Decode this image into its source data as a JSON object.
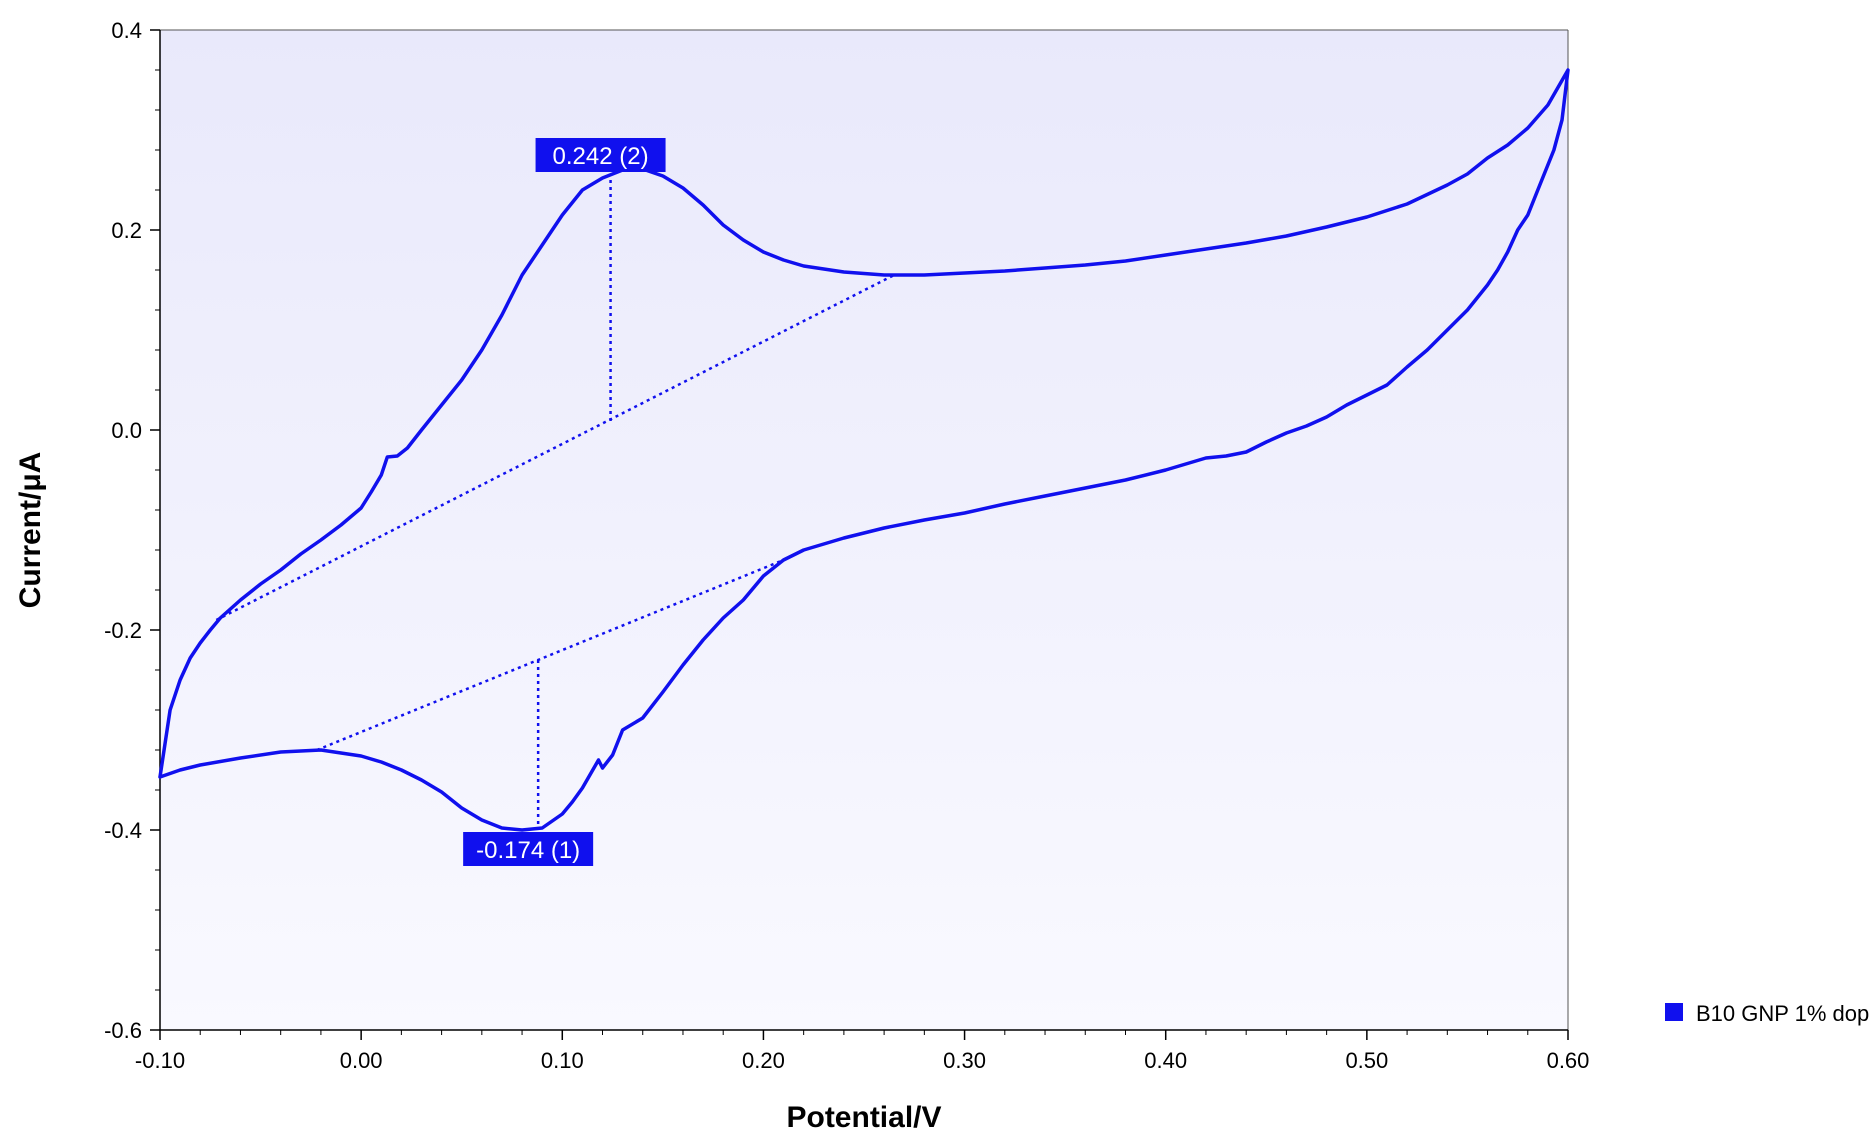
{
  "chart_data": {
    "type": "line",
    "title": "",
    "xlabel": "Potential/V",
    "ylabel": "Current/μA",
    "xlim": [
      -0.1,
      0.6
    ],
    "ylim": [
      -0.6,
      0.4
    ],
    "xticks": [
      -0.1,
      0.0,
      0.1,
      0.2,
      0.3,
      0.4,
      0.5,
      0.6
    ],
    "xtick_labels": [
      "-0.10",
      "0.00",
      "0.10",
      "0.20",
      "0.30",
      "0.40",
      "0.50",
      "0.60"
    ],
    "yticks": [
      -0.6,
      -0.4,
      -0.2,
      0.0,
      0.2,
      0.4
    ],
    "ytick_labels": [
      "-0.6",
      "-0.4",
      "-0.2",
      "0.0",
      "0.2",
      "0.4"
    ],
    "grid": false,
    "legend_position": "bottom-right outside",
    "series": [
      {
        "name": "B10 GNP 1% dop",
        "color": "#1010ee",
        "points": [
          [
            -0.1,
            -0.347
          ],
          [
            -0.095,
            -0.28
          ],
          [
            -0.09,
            -0.25
          ],
          [
            -0.085,
            -0.228
          ],
          [
            -0.08,
            -0.213
          ],
          [
            -0.075,
            -0.2
          ],
          [
            -0.07,
            -0.188
          ],
          [
            -0.06,
            -0.17
          ],
          [
            -0.05,
            -0.154
          ],
          [
            -0.04,
            -0.14
          ],
          [
            -0.03,
            -0.124
          ],
          [
            -0.02,
            -0.11
          ],
          [
            -0.01,
            -0.095
          ],
          [
            0.0,
            -0.078
          ],
          [
            0.005,
            -0.062
          ],
          [
            0.01,
            -0.045
          ],
          [
            0.013,
            -0.027
          ],
          [
            0.018,
            -0.026
          ],
          [
            0.023,
            -0.018
          ],
          [
            0.03,
            -0.0
          ],
          [
            0.04,
            0.025
          ],
          [
            0.05,
            0.05
          ],
          [
            0.06,
            0.08
          ],
          [
            0.07,
            0.115
          ],
          [
            0.08,
            0.155
          ],
          [
            0.09,
            0.185
          ],
          [
            0.1,
            0.215
          ],
          [
            0.11,
            0.24
          ],
          [
            0.12,
            0.252
          ],
          [
            0.13,
            0.26
          ],
          [
            0.14,
            0.261
          ],
          [
            0.15,
            0.254
          ],
          [
            0.16,
            0.242
          ],
          [
            0.17,
            0.225
          ],
          [
            0.18,
            0.205
          ],
          [
            0.19,
            0.19
          ],
          [
            0.2,
            0.178
          ],
          [
            0.21,
            0.17
          ],
          [
            0.22,
            0.164
          ],
          [
            0.24,
            0.158
          ],
          [
            0.26,
            0.155
          ],
          [
            0.28,
            0.155
          ],
          [
            0.3,
            0.157
          ],
          [
            0.32,
            0.159
          ],
          [
            0.34,
            0.162
          ],
          [
            0.36,
            0.165
          ],
          [
            0.38,
            0.169
          ],
          [
            0.4,
            0.175
          ],
          [
            0.42,
            0.181
          ],
          [
            0.44,
            0.187
          ],
          [
            0.46,
            0.194
          ],
          [
            0.48,
            0.203
          ],
          [
            0.5,
            0.213
          ],
          [
            0.52,
            0.226
          ],
          [
            0.54,
            0.245
          ],
          [
            0.55,
            0.256
          ],
          [
            0.56,
            0.272
          ],
          [
            0.57,
            0.285
          ],
          [
            0.58,
            0.302
          ],
          [
            0.59,
            0.325
          ],
          [
            0.6,
            0.36
          ],
          [
            0.597,
            0.31
          ],
          [
            0.593,
            0.28
          ],
          [
            0.585,
            0.24
          ],
          [
            0.58,
            0.215
          ],
          [
            0.575,
            0.2
          ],
          [
            0.57,
            0.178
          ],
          [
            0.565,
            0.16
          ],
          [
            0.56,
            0.145
          ],
          [
            0.55,
            0.12
          ],
          [
            0.54,
            0.1
          ],
          [
            0.53,
            0.08
          ],
          [
            0.52,
            0.063
          ],
          [
            0.51,
            0.045
          ],
          [
            0.5,
            0.035
          ],
          [
            0.49,
            0.025
          ],
          [
            0.48,
            0.013
          ],
          [
            0.47,
            0.004
          ],
          [
            0.46,
            -0.003
          ],
          [
            0.45,
            -0.012
          ],
          [
            0.44,
            -0.022
          ],
          [
            0.43,
            -0.026
          ],
          [
            0.42,
            -0.028
          ],
          [
            0.4,
            -0.04
          ],
          [
            0.38,
            -0.05
          ],
          [
            0.36,
            -0.058
          ],
          [
            0.34,
            -0.066
          ],
          [
            0.32,
            -0.074
          ],
          [
            0.3,
            -0.083
          ],
          [
            0.28,
            -0.09
          ],
          [
            0.26,
            -0.098
          ],
          [
            0.24,
            -0.108
          ],
          [
            0.22,
            -0.12
          ],
          [
            0.21,
            -0.13
          ],
          [
            0.2,
            -0.146
          ],
          [
            0.19,
            -0.17
          ],
          [
            0.18,
            -0.188
          ],
          [
            0.17,
            -0.21
          ],
          [
            0.16,
            -0.235
          ],
          [
            0.15,
            -0.262
          ],
          [
            0.14,
            -0.288
          ],
          [
            0.13,
            -0.3
          ],
          [
            0.125,
            -0.325
          ],
          [
            0.12,
            -0.338
          ],
          [
            0.118,
            -0.33
          ],
          [
            0.11,
            -0.358
          ],
          [
            0.105,
            -0.372
          ],
          [
            0.1,
            -0.384
          ],
          [
            0.09,
            -0.398
          ],
          [
            0.08,
            -0.4
          ],
          [
            0.07,
            -0.398
          ],
          [
            0.06,
            -0.39
          ],
          [
            0.05,
            -0.378
          ],
          [
            0.04,
            -0.362
          ],
          [
            0.03,
            -0.35
          ],
          [
            0.02,
            -0.34
          ],
          [
            0.01,
            -0.332
          ],
          [
            0.0,
            -0.326
          ],
          [
            -0.02,
            -0.32
          ],
          [
            -0.04,
            -0.322
          ],
          [
            -0.06,
            -0.328
          ],
          [
            -0.08,
            -0.335
          ],
          [
            -0.09,
            -0.34
          ],
          [
            -0.1,
            -0.347
          ]
        ]
      }
    ],
    "baselines": [
      {
        "name": "anodic-baseline",
        "from": [
          -0.072,
          -0.19
        ],
        "to": [
          0.265,
          0.155
        ]
      },
      {
        "name": "cathodic-baseline",
        "from": [
          -0.022,
          -0.32
        ],
        "to": [
          0.21,
          -0.13
        ]
      }
    ],
    "peak_markers": [
      {
        "label": "0.242 (2)",
        "x": 0.124,
        "y_top": 0.25,
        "y_base": 0.008
      },
      {
        "label": "-0.174 (1)",
        "x": 0.088,
        "y_top": -0.23,
        "y_base": -0.4
      }
    ]
  }
}
